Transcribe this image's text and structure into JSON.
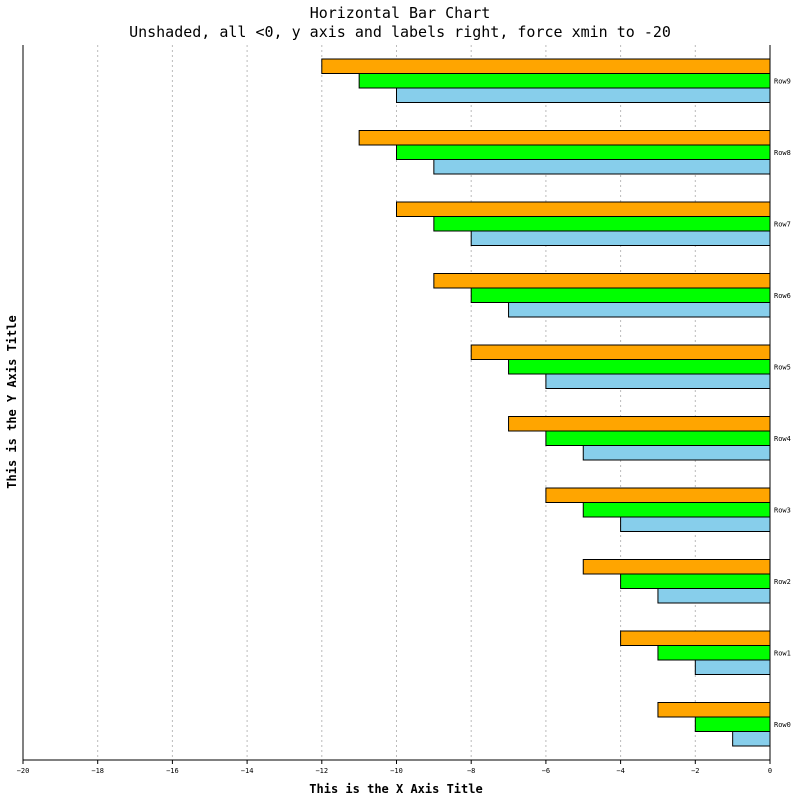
{
  "chart_data": {
    "type": "bar",
    "orientation": "horizontal",
    "title": "Horizontal Bar Chart",
    "subtitle": "Unshaded, all <0, y axis and labels right, force xmin to -20",
    "xlabel": "This is the X Axis Title",
    "ylabel": "This is the Y Axis Title",
    "xlim": [
      -20,
      0
    ],
    "x_ticks": [
      -20,
      -18,
      -16,
      -14,
      -12,
      -10,
      -8,
      -6,
      -4,
      -2,
      0
    ],
    "x_grid": true,
    "y_axis_side": "right",
    "categories": [
      "Row0",
      "Row1",
      "Row2",
      "Row3",
      "Row4",
      "Row5",
      "Row6",
      "Row7",
      "Row8",
      "Row9"
    ],
    "series": [
      {
        "color": "#ffa500",
        "values": [
          -3,
          -4,
          -5,
          -6,
          -7,
          -8,
          -9,
          -10,
          -11,
          -12
        ]
      },
      {
        "color": "#00ff00",
        "values": [
          -2,
          -3,
          -4,
          -5,
          -6,
          -7,
          -8,
          -9,
          -10,
          -11
        ]
      },
      {
        "color": "#87ceeb",
        "values": [
          -1,
          -2,
          -3,
          -4,
          -5,
          -6,
          -7,
          -8,
          -9,
          -10
        ]
      }
    ]
  }
}
